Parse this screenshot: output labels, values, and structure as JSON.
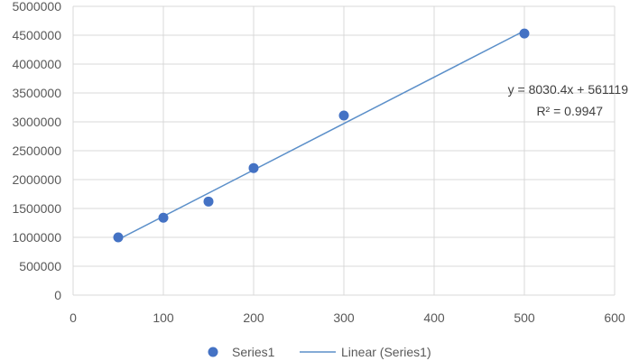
{
  "chart_data": {
    "type": "scatter",
    "title": "",
    "xlabel": "",
    "ylabel": "",
    "xlim": [
      0,
      600
    ],
    "ylim": [
      0,
      5000000
    ],
    "xticks": [
      0,
      100,
      200,
      300,
      400,
      500,
      600
    ],
    "yticks": [
      0,
      500000,
      1000000,
      1500000,
      2000000,
      2500000,
      3000000,
      3500000,
      4000000,
      4500000,
      5000000
    ],
    "grid": true,
    "legend": "bottom",
    "series": [
      {
        "name": "Series1",
        "color": "#4472c4",
        "x": [
          50,
          100,
          150,
          200,
          300,
          500
        ],
        "y": [
          1000000,
          1340000,
          1620000,
          2200000,
          3110000,
          4530000
        ]
      }
    ],
    "trendline": {
      "name": "Linear (Series1)",
      "type": "linear",
      "slope": 8030.4,
      "intercept": 561119,
      "x_range": [
        50,
        500
      ],
      "color": "#5b8fc9",
      "equation": "y = 8030.4x + 561119",
      "r_squared": "R² = 0.9947"
    }
  }
}
